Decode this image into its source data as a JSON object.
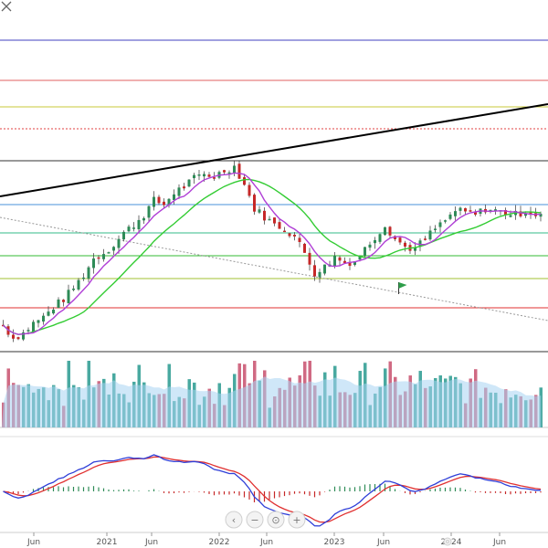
{
  "toolbar": {
    "top_icon": "expand-arrows-icon",
    "buttons": [
      {
        "name": "pan-left-button",
        "icon": "chevron-left-icon",
        "glyph": "‹"
      },
      {
        "name": "zoom-out-button",
        "icon": "minus-icon",
        "glyph": "−"
      },
      {
        "name": "reset-button",
        "icon": "reset-icon",
        "glyph": "⊙"
      },
      {
        "name": "zoom-in-button",
        "icon": "plus-icon",
        "glyph": "+"
      }
    ],
    "bottom_button": {
      "name": "settings-button",
      "icon": "gear-icon"
    }
  },
  "colors": {
    "up": "#2e8b57",
    "down": "#c62828",
    "ma_fast": "#b03fd6",
    "ma_slow": "#33cc33",
    "volume_up": "#49a9a0",
    "volume_down": "#d06a83",
    "volume_avg": "#a8d4f2",
    "macd_line": "#2f3fd8",
    "signal_line": "#e03030",
    "trendline": "#000000"
  },
  "chart_data": {
    "type": "candlestick",
    "x_ticks": [
      "Jun",
      "2021",
      "Jun",
      "2022",
      "Jun",
      "2023",
      "Jun",
      "2024",
      "Jun"
    ],
    "horizontal_levels": [
      {
        "color": "#4040c0",
        "style": "solid"
      },
      {
        "color": "#e06060",
        "style": "solid"
      },
      {
        "color": "#c8c83a",
        "style": "solid"
      },
      {
        "color": "#e04040",
        "style": "dotted"
      },
      {
        "color": "#333333",
        "style": "solid"
      },
      {
        "color": "#4a90d9",
        "style": "solid"
      },
      {
        "color": "#33bb88",
        "style": "solid"
      },
      {
        "color": "#33bb33",
        "style": "solid"
      },
      {
        "color": "#a0c030",
        "style": "solid"
      },
      {
        "color": "#e03030",
        "style": "solid"
      },
      {
        "color": "#333333",
        "style": "solid"
      }
    ],
    "price_series": {
      "key_points": [
        [
          0,
          20
        ],
        [
          2,
          7
        ],
        [
          4,
          12
        ],
        [
          6,
          22
        ],
        [
          8,
          28
        ],
        [
          10,
          38
        ],
        [
          12,
          46
        ],
        [
          14,
          57
        ],
        [
          16,
          70
        ],
        [
          18,
          86
        ],
        [
          20,
          92
        ],
        [
          22,
          100
        ],
        [
          24,
          112
        ],
        [
          26,
          120
        ],
        [
          28,
          130
        ],
        [
          30,
          144
        ],
        [
          32,
          140
        ],
        [
          34,
          152
        ],
        [
          36,
          158
        ],
        [
          38,
          166
        ],
        [
          40,
          170
        ],
        [
          42,
          168
        ],
        [
          44,
          174
        ],
        [
          46,
          178
        ],
        [
          48,
          160
        ],
        [
          50,
          136
        ],
        [
          52,
          128
        ],
        [
          54,
          120
        ],
        [
          56,
          116
        ],
        [
          58,
          108
        ],
        [
          60,
          92
        ],
        [
          62,
          72
        ],
        [
          64,
          78
        ],
        [
          66,
          88
        ],
        [
          68,
          82
        ],
        [
          70,
          84
        ],
        [
          72,
          96
        ],
        [
          74,
          108
        ],
        [
          76,
          120
        ],
        [
          78,
          106
        ],
        [
          80,
          98
        ],
        [
          82,
          96
        ],
        [
          84,
          106
        ],
        [
          86,
          116
        ],
        [
          88,
          124
        ],
        [
          90,
          134
        ],
        [
          92,
          132
        ],
        [
          94,
          130
        ],
        [
          96,
          136
        ],
        [
          98,
          134
        ],
        [
          100,
          132
        ],
        [
          102,
          130
        ],
        [
          104,
          134
        ],
        [
          106,
          130
        ]
      ]
    },
    "green_flag_marker": {
      "bar": 79,
      "icon": "flag-icon"
    }
  }
}
